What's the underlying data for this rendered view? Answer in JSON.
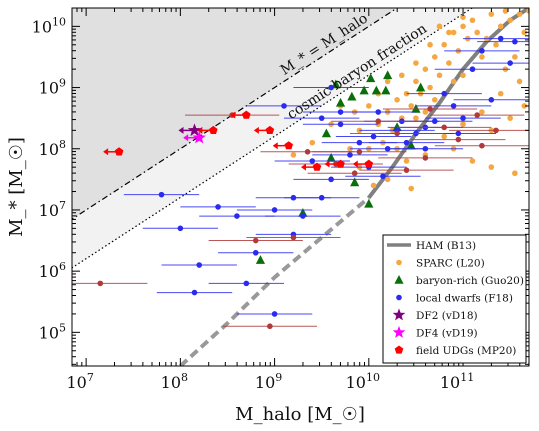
{
  "chart_data": {
    "type": "scatter",
    "xlabel": "M_halo [M_☉]",
    "ylabel": "M_* [M_☉]",
    "x_log_range": [
      6.85,
      11.7
    ],
    "y_log_range": [
      4.45,
      10.3
    ],
    "xscale": "log",
    "yscale": "log",
    "x_ticks": [
      {
        "exp": 7,
        "label_base": "10",
        "label_exp": "7"
      },
      {
        "exp": 8,
        "label_base": "10",
        "label_exp": "8"
      },
      {
        "exp": 9,
        "label_base": "10",
        "label_exp": "9"
      },
      {
        "exp": 10,
        "label_base": "10",
        "label_exp": "10"
      },
      {
        "exp": 11,
        "label_base": "10",
        "label_exp": "11"
      }
    ],
    "y_ticks": [
      {
        "exp": 5,
        "label_base": "10",
        "label_exp": "5"
      },
      {
        "exp": 6,
        "label_base": "10",
        "label_exp": "6"
      },
      {
        "exp": 7,
        "label_base": "10",
        "label_exp": "7"
      },
      {
        "exp": 8,
        "label_base": "10",
        "label_exp": "8"
      },
      {
        "exp": 9,
        "label_base": "10",
        "label_exp": "9"
      },
      {
        "exp": 10,
        "label_base": "10",
        "label_exp": "10"
      }
    ],
    "annotations": {
      "identity_line": "M_* = M_halo",
      "baryon_line": "cosmic baryon fraction"
    },
    "legend": {
      "placement": "bottom-right",
      "entries": [
        {
          "label": "HAM (B13)",
          "marker": "line",
          "color": "#808080"
        },
        {
          "label": "SPARC (L20)",
          "marker": "circle",
          "color": "#f5a742"
        },
        {
          "label": "baryon-rich (Guo20)",
          "marker": "triangle",
          "color": "#0a6e0a"
        },
        {
          "label": "local dwarfs (F18)",
          "marker": "circle",
          "color": "#2a2af0"
        },
        {
          "label": "DF2 (vD18)",
          "marker": "star",
          "color": "#800080"
        },
        {
          "label": "DF4 (vD19)",
          "marker": "star",
          "color": "#ff00ff"
        },
        {
          "label": "field UDGs (MP20)",
          "marker": "pentagon",
          "color": "#ff0000"
        }
      ]
    },
    "ham_curve_solid": [
      [
        10.0,
        7.2
      ],
      [
        10.25,
        7.7
      ],
      [
        10.5,
        8.25
      ],
      [
        10.75,
        8.75
      ],
      [
        11.0,
        9.3
      ],
      [
        11.25,
        9.75
      ],
      [
        11.5,
        10.1
      ],
      [
        11.7,
        10.3
      ]
    ],
    "ham_curve_dashed": [
      [
        8.0,
        4.45
      ],
      [
        8.5,
        5.15
      ],
      [
        9.0,
        5.9
      ],
      [
        9.5,
        6.55
      ],
      [
        10.0,
        7.2
      ]
    ],
    "series": [
      {
        "name": "SPARC (L20)",
        "marker": "circle",
        "color": "#f5a742",
        "points": [
          [
            10.0,
            8.0
          ],
          [
            10.05,
            8.2
          ],
          [
            10.1,
            8.4
          ],
          [
            10.15,
            8.1
          ],
          [
            10.2,
            8.6
          ],
          [
            10.25,
            8.3
          ],
          [
            10.3,
            8.8
          ],
          [
            10.35,
            8.5
          ],
          [
            10.4,
            8.9
          ],
          [
            10.45,
            8.7
          ],
          [
            10.5,
            9.1
          ],
          [
            10.55,
            8.9
          ],
          [
            10.6,
            9.3
          ],
          [
            10.65,
            9.0
          ],
          [
            10.7,
            9.5
          ],
          [
            10.75,
            9.2
          ],
          [
            10.8,
            9.7
          ],
          [
            10.85,
            9.4
          ],
          [
            10.9,
            9.9
          ],
          [
            10.95,
            9.6
          ],
          [
            11.0,
            10.0
          ],
          [
            11.05,
            9.8
          ],
          [
            11.1,
            10.1
          ],
          [
            11.15,
            9.9
          ],
          [
            11.2,
            9.5
          ],
          [
            11.25,
            9.8
          ],
          [
            11.3,
            10.2
          ],
          [
            11.35,
            9.7
          ],
          [
            11.4,
            10.0
          ],
          [
            11.45,
            9.3
          ],
          [
            11.5,
            10.1
          ],
          [
            11.55,
            9.5
          ],
          [
            11.6,
            10.2
          ],
          [
            11.65,
            9.9
          ],
          [
            10.3,
            8.0
          ],
          [
            10.4,
            7.8
          ],
          [
            10.5,
            8.5
          ],
          [
            10.6,
            8.6
          ],
          [
            10.7,
            8.8
          ],
          [
            10.8,
            8.9
          ],
          [
            10.9,
            9.1
          ],
          [
            11.0,
            9.2
          ],
          [
            11.1,
            9.3
          ],
          [
            10.6,
            7.9
          ],
          [
            10.8,
            8.2
          ],
          [
            11.0,
            8.4
          ],
          [
            11.2,
            8.6
          ],
          [
            11.4,
            8.9
          ],
          [
            11.6,
            9.1
          ],
          [
            11.3,
            8.3
          ],
          [
            11.5,
            8.5
          ],
          [
            11.65,
            8.7
          ],
          [
            10.2,
            7.5
          ],
          [
            10.9,
            8.0
          ],
          [
            11.1,
            7.8
          ],
          [
            11.3,
            7.7
          ],
          [
            11.55,
            7.6
          ],
          [
            9.85,
            8.6
          ],
          [
            9.9,
            8.3
          ],
          [
            10.0,
            8.7
          ],
          [
            10.1,
            8.9
          ],
          [
            10.2,
            9.1
          ],
          [
            10.35,
            9.2
          ],
          [
            10.5,
            9.4
          ],
          [
            10.65,
            9.7
          ],
          [
            10.75,
            10.0
          ],
          [
            10.85,
            9.9
          ],
          [
            11.0,
            10.15
          ],
          [
            9.8,
            8.0
          ],
          [
            9.9,
            7.7
          ],
          [
            10.05,
            7.4
          ],
          [
            10.45,
            7.35
          ],
          [
            11.7,
            10.25
          ],
          [
            11.45,
            10.25
          ],
          [
            9.2,
            7.9
          ],
          [
            9.4,
            8.1
          ],
          [
            9.6,
            8.4
          ],
          [
            9.7,
            8.7
          ]
        ]
      },
      {
        "name": "baryon-rich (Guo20)",
        "marker": "triangle",
        "color": "#0a6e0a",
        "points": [
          [
            9.7,
            8.75
          ],
          [
            9.82,
            8.85
          ],
          [
            9.95,
            8.95
          ],
          [
            10.02,
            9.15
          ],
          [
            10.08,
            8.95
          ],
          [
            10.18,
            8.95
          ],
          [
            10.3,
            8.35
          ],
          [
            10.5,
            8.65
          ],
          [
            10.55,
            9.0
          ],
          [
            10.2,
            9.2
          ],
          [
            9.55,
            8.25
          ],
          [
            9.6,
            7.85
          ],
          [
            9.85,
            7.45
          ],
          [
            10.0,
            7.1
          ],
          [
            9.3,
            6.95
          ],
          [
            8.85,
            6.18
          ],
          [
            10.45,
            8.05
          ],
          [
            9.65,
            9.05
          ]
        ]
      },
      {
        "name": "local dwarfs (F18)",
        "marker": "circle",
        "color": "#2a2af0",
        "x_err": 0.4,
        "points": [
          [
            7.8,
            7.25
          ],
          [
            8.0,
            6.7
          ],
          [
            8.2,
            6.1
          ],
          [
            8.4,
            7.05
          ],
          [
            8.6,
            6.9
          ],
          [
            8.8,
            6.3
          ],
          [
            9.0,
            5.3
          ],
          [
            9.0,
            7.0
          ],
          [
            9.1,
            8.7
          ],
          [
            9.2,
            7.2
          ],
          [
            9.3,
            6.9
          ],
          [
            9.4,
            7.8
          ],
          [
            9.5,
            8.5
          ],
          [
            9.6,
            7.5
          ],
          [
            9.7,
            8.4
          ],
          [
            9.8,
            7.9
          ],
          [
            9.9,
            8.1
          ],
          [
            10.0,
            7.7
          ],
          [
            10.1,
            8.6
          ],
          [
            10.2,
            8.0
          ],
          [
            10.3,
            8.3
          ],
          [
            10.4,
            8.1
          ],
          [
            10.5,
            8.25
          ],
          [
            10.6,
            8.0
          ],
          [
            10.7,
            8.45
          ],
          [
            10.8,
            8.9
          ],
          [
            10.9,
            8.7
          ],
          [
            11.0,
            8.5
          ],
          [
            11.1,
            9.3
          ],
          [
            11.2,
            9.6
          ],
          [
            11.3,
            8.8
          ],
          [
            11.4,
            9.8
          ],
          [
            11.5,
            9.4
          ],
          [
            11.55,
            9.75
          ],
          [
            9.6,
            9.0
          ],
          [
            9.7,
            8.6
          ],
          [
            10.05,
            8.2
          ],
          [
            10.35,
            8.45
          ],
          [
            8.15,
            5.65
          ],
          [
            8.7,
            5.8
          ],
          [
            9.2,
            6.6
          ],
          [
            9.5,
            7.2
          ],
          [
            10.15,
            7.55
          ],
          [
            10.6,
            8.35
          ],
          [
            10.95,
            8.25
          ]
        ]
      },
      {
        "name": "field UDGs (MP20)",
        "marker": "circle",
        "color": "#b03a3a",
        "x_err": 0.5,
        "points": [
          [
            7.15,
            5.8
          ],
          [
            8.95,
            5.1
          ],
          [
            9.2,
            6.55
          ],
          [
            9.35,
            7.95
          ],
          [
            9.65,
            7.75
          ],
          [
            9.9,
            7.95
          ],
          [
            10.1,
            8.45
          ],
          [
            10.3,
            8.25
          ],
          [
            10.6,
            7.85
          ],
          [
            10.8,
            8.35
          ],
          [
            10.95,
            8.15
          ],
          [
            11.2,
            8.05
          ],
          [
            11.35,
            8.3
          ],
          [
            11.15,
            8.55
          ],
          [
            9.85,
            7.6
          ],
          [
            10.4,
            7.65
          ],
          [
            10.65,
            8.65
          ],
          [
            8.55,
            8.55
          ],
          [
            8.8,
            6.5
          ]
        ]
      },
      {
        "name": "field UDGs (MP20)",
        "marker": "pentagon",
        "color": "#ff0000",
        "arrow": "left",
        "points": [
          [
            7.35,
            7.95
          ],
          [
            8.35,
            8.3
          ],
          [
            8.7,
            8.55
          ],
          [
            8.95,
            8.3
          ],
          [
            9.15,
            8.05
          ],
          [
            10.0,
            7.75
          ],
          [
            9.45,
            7.7
          ],
          [
            9.7,
            7.75
          ]
        ]
      },
      {
        "name": "DF2 (vD18)",
        "marker": "star",
        "color": "#800080",
        "arrow": "left",
        "points": [
          [
            8.15,
            8.3
          ]
        ]
      },
      {
        "name": "DF4 (vD19)",
        "marker": "star",
        "color": "#ff00ff",
        "arrow": "left",
        "points": [
          [
            8.2,
            8.18
          ]
        ]
      }
    ]
  }
}
